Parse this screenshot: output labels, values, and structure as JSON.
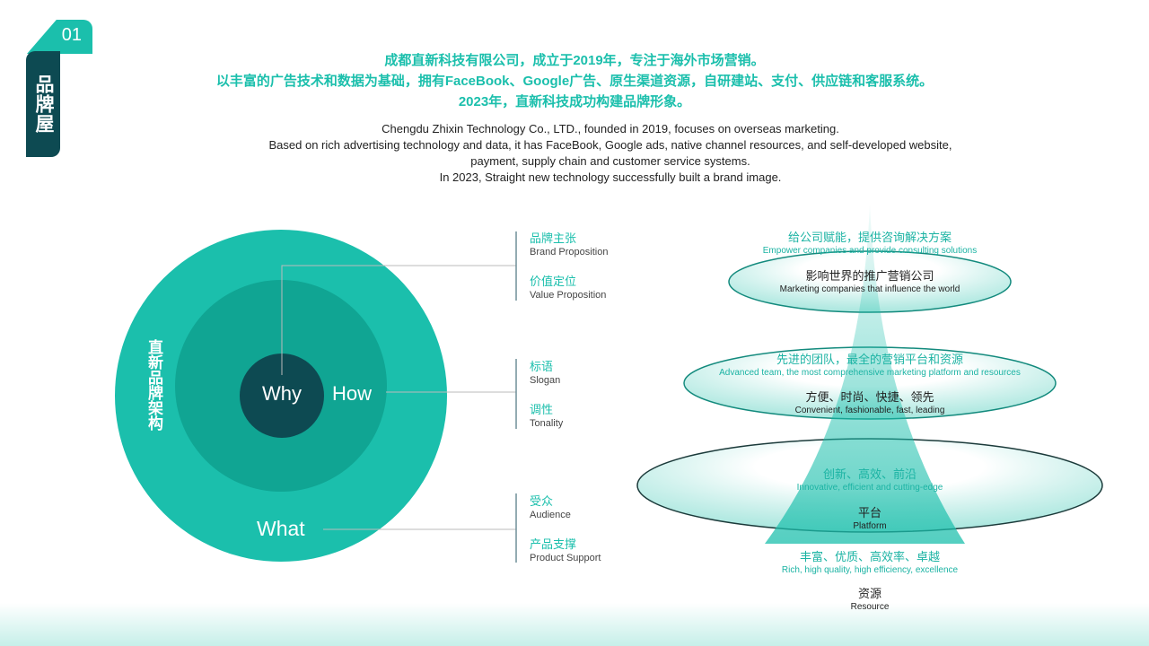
{
  "tag": {
    "number": "01",
    "title": "品牌屋"
  },
  "header": {
    "cn": [
      "成都直新科技有限公司，成立于2019年，专注于海外市场营销。",
      "以丰富的广告技术和数据为基础，拥有FaceBook、Google广告、原生渠道资源，自研建站、支付、供应链和客服系统。",
      "2023年，直新科技成功构建品牌形象。"
    ],
    "en": [
      "Chengdu Zhixin Technology Co., LTD., founded in 2019, focuses on overseas marketing.",
      "Based on rich advertising technology and data, it has FaceBook, Google ads, native channel resources, and self-developed website,",
      "payment, supply chain and customer service systems.",
      "In 2023, Straight new technology successfully built a brand image."
    ]
  },
  "circle": {
    "title": "直新品牌架构",
    "why": "Why",
    "how": "How",
    "what": "What"
  },
  "labels": [
    {
      "cn": "品牌主张",
      "en": "Brand Proposition"
    },
    {
      "cn": "价值定位",
      "en": "Value Proposition"
    },
    {
      "cn": "标语",
      "en": "Slogan"
    },
    {
      "cn": "调性",
      "en": "Tonality"
    },
    {
      "cn": "受众",
      "en": "Audience"
    },
    {
      "cn": "产品支撑",
      "en": "Product Support"
    }
  ],
  "pyramid": [
    {
      "cn": "给公司赋能，提供咨询解决方案",
      "en": "Empower companies and provide consulting solutions"
    },
    {
      "cn": "影响世界的推广营销公司",
      "en": "Marketing companies that influence the world"
    },
    {
      "cn": "先进的团队，最全的营销平台和资源",
      "en": "Advanced team, the most comprehensive marketing platform and resources"
    },
    {
      "cn": "方便、时尚、快捷、领先",
      "en": "Convenient, fashionable, fast, leading"
    },
    {
      "cn": "创新、高效、前沿",
      "en": "Innovative, efficient and cutting-edge"
    },
    {
      "cn": "平台",
      "en": "Platform"
    },
    {
      "cn": "丰富、优质、高效率、卓越",
      "en": "Rich, high quality, high efficiency, excellence"
    },
    {
      "cn": "资源",
      "en": "Resource"
    }
  ],
  "colors": {
    "teal": "#1bbfac",
    "dark": "#0d4a52"
  }
}
